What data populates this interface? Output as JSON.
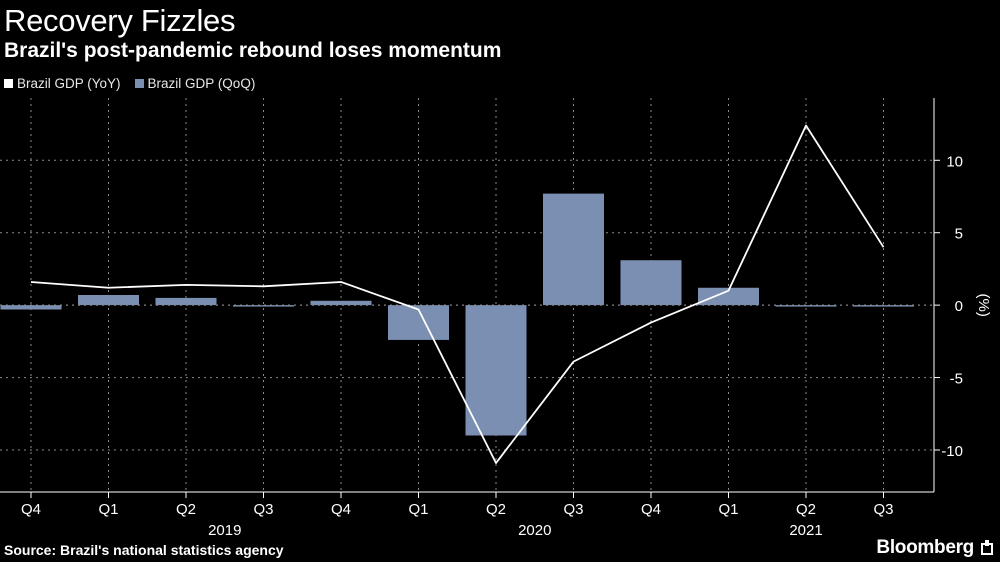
{
  "chart_data": {
    "type": "bar+line",
    "title": "Recovery Fizzles",
    "subtitle": "Brazil's post-pandemic rebound loses momentum",
    "categories": [
      "Q4",
      "Q1",
      "Q2",
      "Q3",
      "Q4",
      "Q1",
      "Q2",
      "Q3",
      "Q4",
      "Q1",
      "Q2",
      "Q3"
    ],
    "year_labels": [
      {
        "label": "2019",
        "from": 1,
        "to": 4
      },
      {
        "label": "2020",
        "from": 5,
        "to": 8
      },
      {
        "label": "2021",
        "from": 9,
        "to": 11
      }
    ],
    "series": [
      {
        "name": "Brazil GDP (YoY)",
        "type": "line",
        "color": "#ffffff",
        "values": [
          1.6,
          1.2,
          1.4,
          1.3,
          1.6,
          -0.3,
          -10.9,
          -3.9,
          -1.2,
          1.0,
          12.4,
          4.0
        ]
      },
      {
        "name": "Brazil GDP (QoQ)",
        "type": "bar",
        "color": "#7b8fb3",
        "values": [
          -0.3,
          0.7,
          0.5,
          -0.1,
          0.3,
          -2.4,
          -9.0,
          7.7,
          3.1,
          1.2,
          -0.1,
          -0.1
        ]
      }
    ],
    "yticks": [
      10,
      5,
      0,
      -5,
      -10
    ],
    "ylim": [
      -12.9,
      14.3
    ],
    "ylabel": "(%)",
    "grid": true
  },
  "source": "Source: Brazil's national statistics agency",
  "brand": "Bloomberg"
}
